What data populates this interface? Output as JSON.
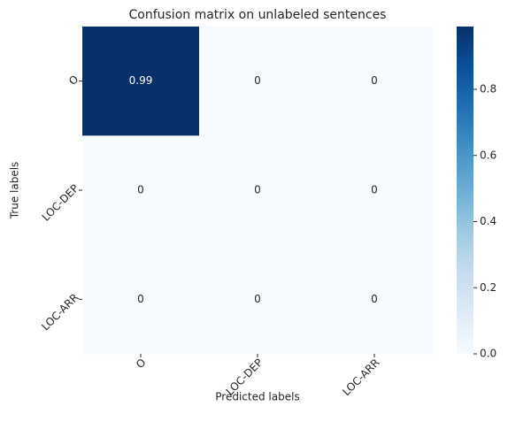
{
  "chart_data": {
    "type": "heatmap",
    "title": "Confusion matrix on unlabeled sentences",
    "x_label": "Predicted labels",
    "y_label": "True labels",
    "x_categories": [
      "O",
      "LOC-DEP",
      "LOC-ARR"
    ],
    "y_categories": [
      "O",
      "LOC-DEP",
      "LOC-ARR"
    ],
    "values": [
      [
        0.99,
        0,
        0
      ],
      [
        0,
        0,
        0
      ],
      [
        0,
        0,
        0
      ]
    ],
    "colormap": "Blues",
    "clim": [
      0,
      0.99
    ],
    "cticks": [
      {
        "value": 0,
        "label": "0.0"
      },
      0.2,
      0.4,
      0.6,
      0.8
    ]
  }
}
